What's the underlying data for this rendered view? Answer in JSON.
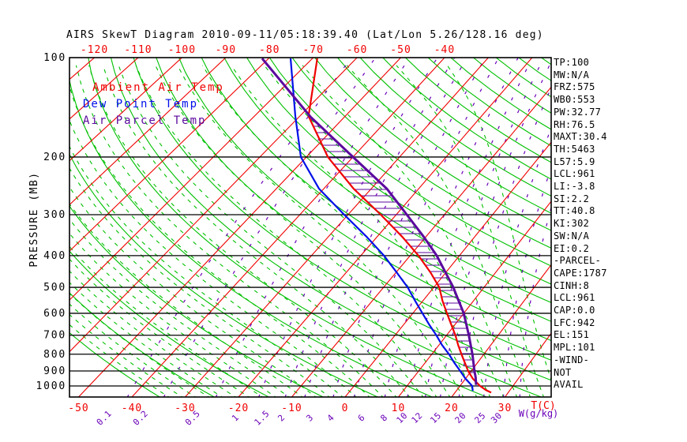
{
  "title": "AIRS SkewT Diagram 2010-09-11/05:18:39.40 (Lat/Lon 5.26/128.16 deg)",
  "legend": {
    "ambient": "Ambient Air Temp",
    "dew": "Dew Point Temp",
    "parcel": "Air Parcel Temp"
  },
  "stats": [
    "TP:100",
    "MW:N/A",
    "FRZ:575",
    "WB0:553",
    "PW:32.77",
    "RH:76.5",
    "MAXT:30.4",
    "TH:5463",
    "L57:5.9",
    "LCL:961",
    "LI:-3.8",
    "SI:2.2",
    "TT:40.8",
    "KI:302",
    "SW:N/A",
    "EI:0.2",
    "-PARCEL-",
    "CAPE:1787",
    "CINH:8",
    "LCL:961",
    "CAP:0.0",
    "LFC:942",
    "EL:151",
    "MPL:101",
    "-WIND-",
    "NOT",
    "AVAIL"
  ],
  "colors": {
    "isotherm": "#f00000",
    "adiabat": "#00c000",
    "mixing": "#6a00b8",
    "ambient": "#f00000",
    "dew": "#0010e8",
    "parcel": "#5b0a9e",
    "frame": "#000000"
  },
  "chart_data": {
    "type": "skewt-log-p",
    "pressure_axis": {
      "label": "PRESSURE (MB)",
      "ticks": [
        100,
        200,
        300,
        400,
        500,
        600,
        700,
        800,
        900,
        1000
      ],
      "top_mb": 100,
      "bottom_mb": 1050
    },
    "temp_axis": {
      "label": "T(C)",
      "top_ticks": [
        -120,
        -110,
        -100,
        -90,
        -80,
        -70,
        -60,
        -50,
        -40
      ],
      "bottom_ticks": [
        -50,
        -40,
        -30,
        -20,
        -10,
        0,
        10,
        20,
        30
      ]
    },
    "mixing_axis": {
      "label": "W(g/kg)",
      "ticks": [
        0.1,
        0.2,
        0.5,
        1,
        1.5,
        2,
        3,
        4,
        6,
        8,
        10,
        12,
        15,
        20,
        25,
        30
      ]
    },
    "background": {
      "isotherm_range": [
        -130,
        50
      ],
      "isotherm_step": 10,
      "dry_adiabat_range": [
        -40,
        240
      ],
      "dry_adiabat_step": 10,
      "moist_adiabat_range": [
        -32.5,
        40
      ],
      "moist_adiabat_step": 2.5
    },
    "series": [
      {
        "name": "Ambient Air Temp",
        "color_key": "ambient",
        "points": [
          [
            100,
            -68.9
          ],
          [
            150,
            -58.1
          ],
          [
            200,
            -45.4
          ],
          [
            250,
            -33.7
          ],
          [
            300,
            -23.2
          ],
          [
            350,
            -14.9
          ],
          [
            400,
            -8.3
          ],
          [
            450,
            -3.1
          ],
          [
            500,
            1.1
          ],
          [
            550,
            3.9
          ],
          [
            600,
            6.7
          ],
          [
            650,
            9.3
          ],
          [
            700,
            11.7
          ],
          [
            750,
            13.7
          ],
          [
            800,
            15.7
          ],
          [
            850,
            17.6
          ],
          [
            900,
            19.4
          ],
          [
            950,
            21.4
          ],
          [
            1000,
            23.8
          ],
          [
            1030,
            25.5
          ],
          [
            1048,
            26.8
          ]
        ]
      },
      {
        "name": "Dew Point Temp",
        "color_key": "dew",
        "points": [
          [
            100,
            -75.0
          ],
          [
            150,
            -61.0
          ],
          [
            200,
            -51.2
          ],
          [
            250,
            -41.0
          ],
          [
            300,
            -30.8
          ],
          [
            350,
            -22.2
          ],
          [
            400,
            -15.3
          ],
          [
            450,
            -9.9
          ],
          [
            500,
            -5.2
          ],
          [
            550,
            -1.5
          ],
          [
            600,
            1.9
          ],
          [
            650,
            5.0
          ],
          [
            700,
            8.0
          ],
          [
            750,
            10.6
          ],
          [
            800,
            13.3
          ],
          [
            850,
            15.6
          ],
          [
            900,
            17.9
          ],
          [
            950,
            20.0
          ],
          [
            1000,
            22.3
          ],
          [
            1035,
            23.1
          ]
        ]
      },
      {
        "name": "Air Parcel Temp",
        "color_key": "parcel",
        "points": [
          [
            100,
            -81.5
          ],
          [
            151,
            -57.4
          ],
          [
            200,
            -40.0
          ],
          [
            250,
            -26.7
          ],
          [
            300,
            -17.8
          ],
          [
            350,
            -10.5
          ],
          [
            400,
            -4.6
          ],
          [
            450,
            -0.1
          ],
          [
            500,
            3.9
          ],
          [
            550,
            7.1
          ],
          [
            600,
            10.0
          ],
          [
            700,
            14.3
          ],
          [
            800,
            17.8
          ],
          [
            900,
            20.6
          ],
          [
            940,
            21.7
          ],
          [
            993,
            22.9
          ]
        ]
      }
    ],
    "cape_hatched_between": [
      "Air Parcel Temp",
      "Ambient Air Temp"
    ],
    "equilibrium_level_mb": 151
  }
}
